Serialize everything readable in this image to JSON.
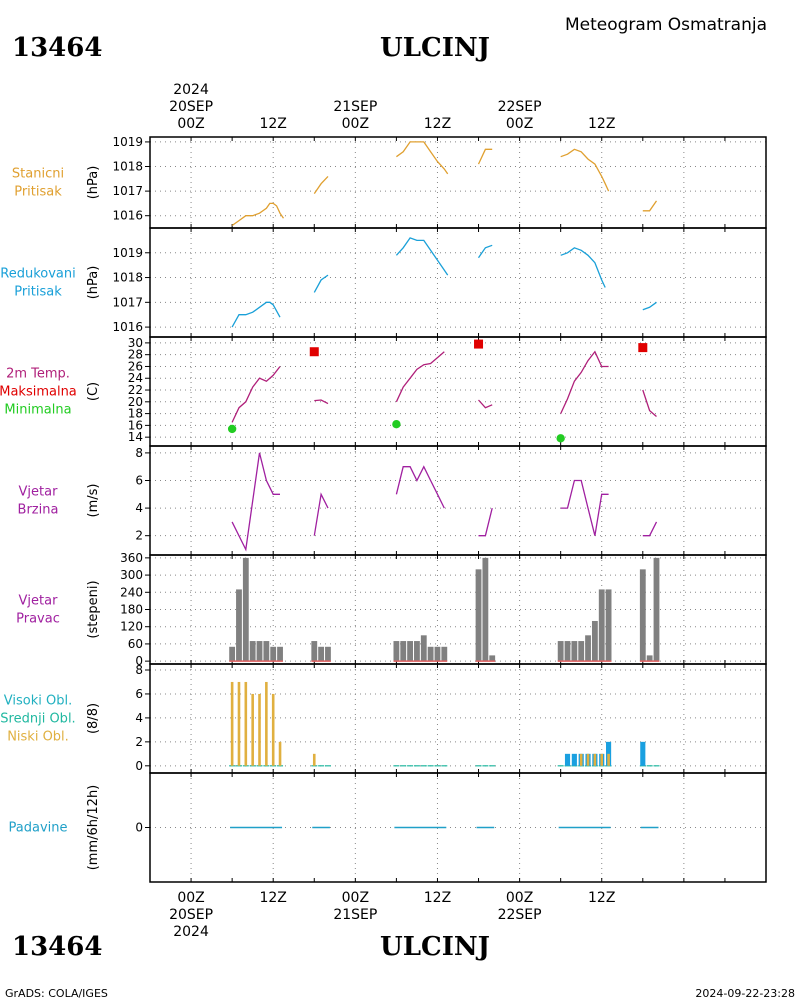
{
  "header": {
    "station_id": "13464",
    "station_name": "ULCINJ",
    "product": "Meteogram Osmatranja"
  },
  "footer": {
    "station_id": "13464",
    "station_name": "ULCINJ",
    "credit": "GrADS: COLA/IGES",
    "timestamp": "2024-09-22-23:28"
  },
  "time_axis": {
    "range_hours": [
      -6,
      84
    ],
    "top_year": "2024",
    "top_labels": [
      {
        "h": 0,
        "date": "20SEP",
        "hour": "00Z"
      },
      {
        "h": 12,
        "date": "",
        "hour": "12Z"
      },
      {
        "h": 24,
        "date": "21SEP",
        "hour": "00Z"
      },
      {
        "h": 36,
        "date": "",
        "hour": "12Z"
      },
      {
        "h": 48,
        "date": "22SEP",
        "hour": "00Z"
      },
      {
        "h": 60,
        "date": "",
        "hour": "12Z"
      }
    ],
    "bottom_year": "2024",
    "bottom_labels": [
      {
        "h": 0,
        "hour": "00Z",
        "date": "20SEP"
      },
      {
        "h": 12,
        "hour": "12Z",
        "date": ""
      },
      {
        "h": 24,
        "hour": "00Z",
        "date": "21SEP"
      },
      {
        "h": 36,
        "hour": "12Z",
        "date": ""
      },
      {
        "h": 48,
        "hour": "00Z",
        "date": "22SEP"
      },
      {
        "h": 60,
        "hour": "12Z",
        "date": ""
      }
    ]
  },
  "colors": {
    "station_pressure": "#e0a030",
    "reduced_pressure": "#1aa0d8",
    "temp": "#b0207a",
    "tmax": "#e00000",
    "tmin": "#22cc22",
    "wind": "#a020a0",
    "dir_bar": "#808080",
    "dir_line": "#e06060",
    "cloud_high": "#20b0c0",
    "cloud_mid": "#20b8a0",
    "cloud_low": "#e0b040",
    "cloud_high_bar": "#1aa0e0",
    "precip": "#20a0c8"
  },
  "chart_data": [
    {
      "type": "line",
      "labels": [
        "Stanicni",
        "Pritisak"
      ],
      "ylabel": "(hPa)",
      "ylim": [
        1015.5,
        1019.2
      ],
      "yticks": [
        1016,
        1017,
        1018,
        1019
      ],
      "series": [
        {
          "segments": [
            [
              [
                6,
                1015.6
              ],
              [
                7,
                1015.8
              ],
              [
                8,
                1016.0
              ],
              [
                9,
                1016.0
              ],
              [
                10,
                1016.1
              ],
              [
                11,
                1016.3
              ],
              [
                11.5,
                1016.5
              ],
              [
                12,
                1016.5
              ],
              [
                12.5,
                1016.4
              ],
              [
                13,
                1016.1
              ],
              [
                13.5,
                1015.9
              ]
            ],
            [
              [
                18,
                1016.9
              ],
              [
                19,
                1017.3
              ],
              [
                20,
                1017.6
              ]
            ],
            [
              [
                30,
                1018.4
              ],
              [
                31,
                1018.6
              ],
              [
                32,
                1019.0
              ],
              [
                33,
                1019.0
              ],
              [
                34,
                1019.0
              ],
              [
                35,
                1018.6
              ],
              [
                36,
                1018.2
              ],
              [
                37,
                1017.9
              ],
              [
                37.5,
                1017.7
              ]
            ],
            [
              [
                42,
                1018.1
              ],
              [
                43,
                1018.7
              ],
              [
                44,
                1018.7
              ]
            ],
            [
              [
                54,
                1018.4
              ],
              [
                55,
                1018.5
              ],
              [
                56,
                1018.7
              ],
              [
                57,
                1018.6
              ],
              [
                58,
                1018.3
              ],
              [
                59,
                1018.1
              ],
              [
                60,
                1017.6
              ],
              [
                60.5,
                1017.3
              ],
              [
                61,
                1017.0
              ]
            ],
            [
              [
                66,
                1016.2
              ],
              [
                67,
                1016.2
              ],
              [
                68,
                1016.6
              ]
            ]
          ]
        }
      ]
    },
    {
      "type": "line",
      "labels": [
        "Redukovani",
        "Pritisak"
      ],
      "ylabel": "(hPa)",
      "ylim": [
        1015.6,
        1020.0
      ],
      "yticks": [
        1016,
        1017,
        1018,
        1019
      ],
      "series": [
        {
          "segments": [
            [
              [
                6,
                1016.0
              ],
              [
                7,
                1016.5
              ],
              [
                8,
                1016.5
              ],
              [
                9,
                1016.6
              ],
              [
                10,
                1016.8
              ],
              [
                11,
                1017.0
              ],
              [
                11.5,
                1017.0
              ],
              [
                12,
                1016.9
              ],
              [
                13,
                1016.4
              ]
            ],
            [
              [
                18,
                1017.4
              ],
              [
                19,
                1017.9
              ],
              [
                20,
                1018.1
              ]
            ],
            [
              [
                30,
                1018.9
              ],
              [
                31,
                1019.2
              ],
              [
                32,
                1019.6
              ],
              [
                33,
                1019.5
              ],
              [
                34,
                1019.5
              ],
              [
                35,
                1019.1
              ],
              [
                36,
                1018.7
              ],
              [
                37,
                1018.3
              ],
              [
                37.5,
                1018.1
              ]
            ],
            [
              [
                42,
                1018.8
              ],
              [
                43,
                1019.2
              ],
              [
                44,
                1019.3
              ]
            ],
            [
              [
                54,
                1018.9
              ],
              [
                55,
                1019.0
              ],
              [
                56,
                1019.2
              ],
              [
                57,
                1019.1
              ],
              [
                58,
                1018.9
              ],
              [
                59,
                1018.6
              ],
              [
                60,
                1017.9
              ],
              [
                60.5,
                1017.6
              ]
            ],
            [
              [
                66,
                1016.7
              ],
              [
                67,
                1016.8
              ],
              [
                68,
                1017.0
              ]
            ]
          ]
        }
      ]
    },
    {
      "type": "line",
      "labels": [
        "2m Temp.",
        "Maksimalna",
        "Minimalna"
      ],
      "ylabel": "(C)",
      "ylim": [
        12.5,
        31
      ],
      "yticks": [
        14,
        16,
        18,
        20,
        22,
        24,
        26,
        28,
        30
      ],
      "series": [
        {
          "segments": [
            [
              [
                6,
                16.5
              ],
              [
                7,
                19.0
              ],
              [
                8,
                20.0
              ],
              [
                9,
                22.5
              ],
              [
                10,
                24.0
              ],
              [
                11,
                23.5
              ],
              [
                12,
                24.5
              ],
              [
                13,
                26.0
              ]
            ],
            [
              [
                18,
                20.2
              ],
              [
                19,
                20.3
              ],
              [
                20,
                19.7
              ]
            ],
            [
              [
                30,
                20.0
              ],
              [
                31,
                22.5
              ],
              [
                32,
                24.0
              ],
              [
                33,
                25.5
              ],
              [
                34,
                26.3
              ],
              [
                35,
                26.5
              ],
              [
                36,
                27.5
              ],
              [
                37,
                28.5
              ]
            ],
            [
              [
                42,
                20.3
              ],
              [
                43,
                19.0
              ],
              [
                44,
                19.5
              ]
            ],
            [
              [
                54,
                18.0
              ],
              [
                55,
                20.5
              ],
              [
                56,
                23.5
              ],
              [
                57,
                25.0
              ],
              [
                58,
                27.0
              ],
              [
                59,
                28.5
              ],
              [
                60,
                26.0
              ],
              [
                61,
                26.0
              ]
            ],
            [
              [
                66,
                22.0
              ],
              [
                67,
                18.5
              ],
              [
                68,
                17.5
              ]
            ]
          ]
        }
      ],
      "tmax": [
        [
          18,
          28.5
        ],
        [
          42,
          29.8
        ],
        [
          66,
          29.2
        ]
      ],
      "tmin": [
        [
          6,
          15.4
        ],
        [
          30,
          16.2
        ],
        [
          54,
          13.8
        ]
      ]
    },
    {
      "type": "line",
      "labels": [
        "Vjetar",
        "Brzina"
      ],
      "ylabel": "(m/s)",
      "ylim": [
        0.6,
        8.5
      ],
      "yticks": [
        2,
        4,
        6,
        8
      ],
      "series": [
        {
          "segments": [
            [
              [
                6,
                3
              ],
              [
                8,
                1
              ],
              [
                10,
                8
              ],
              [
                11,
                6
              ],
              [
                12,
                5
              ],
              [
                13,
                5
              ]
            ],
            [
              [
                18,
                2
              ],
              [
                19,
                5
              ],
              [
                20,
                4
              ]
            ],
            [
              [
                30,
                5
              ],
              [
                31,
                7
              ],
              [
                32,
                7
              ],
              [
                33,
                6
              ],
              [
                34,
                7
              ],
              [
                35,
                6
              ],
              [
                36,
                5
              ],
              [
                37,
                4
              ]
            ],
            [
              [
                42,
                2
              ],
              [
                43,
                2
              ],
              [
                44,
                4
              ]
            ],
            [
              [
                54,
                4
              ],
              [
                55,
                4
              ],
              [
                56,
                6
              ],
              [
                57,
                6
              ],
              [
                58,
                4
              ],
              [
                59,
                2
              ],
              [
                60,
                5
              ],
              [
                61,
                5
              ]
            ],
            [
              [
                66,
                2
              ],
              [
                67,
                2
              ],
              [
                68,
                3
              ]
            ]
          ]
        }
      ]
    },
    {
      "type": "bar",
      "labels": [
        "Vjetar",
        "Pravac"
      ],
      "ylabel": "(stepeni)",
      "ylim": [
        -10,
        370
      ],
      "yticks": [
        0,
        60,
        120,
        180,
        240,
        300,
        360
      ],
      "ytick_labels": [
        "0",
        "60",
        "120",
        "180",
        "240",
        "300",
        "360"
      ],
      "bars": [
        [
          6,
          50
        ],
        [
          7,
          250
        ],
        [
          8,
          360
        ],
        [
          9,
          70
        ],
        [
          10,
          70
        ],
        [
          11,
          70
        ],
        [
          12,
          50
        ],
        [
          13,
          50
        ],
        [
          18,
          70
        ],
        [
          19,
          50
        ],
        [
          20,
          50
        ],
        [
          30,
          70
        ],
        [
          31,
          70
        ],
        [
          32,
          70
        ],
        [
          33,
          70
        ],
        [
          34,
          90
        ],
        [
          35,
          50
        ],
        [
          36,
          50
        ],
        [
          37,
          50
        ],
        [
          42,
          320
        ],
        [
          43,
          360
        ],
        [
          44,
          20
        ],
        [
          54,
          70
        ],
        [
          55,
          70
        ],
        [
          56,
          70
        ],
        [
          57,
          70
        ],
        [
          58,
          90
        ],
        [
          59,
          140
        ],
        [
          60,
          250
        ],
        [
          61,
          250
        ],
        [
          66,
          320
        ],
        [
          67,
          20
        ],
        [
          68,
          360
        ]
      ]
    },
    {
      "type": "bar",
      "labels": [
        "Visoki Obl.",
        "Srednji Obl.",
        "Niski Obl."
      ],
      "ylabel": "(8/8)",
      "ylim": [
        -0.6,
        8.5
      ],
      "yticks": [
        0,
        2,
        4,
        6,
        8
      ],
      "low": [
        [
          6,
          7
        ],
        [
          7,
          7
        ],
        [
          8,
          7
        ],
        [
          9,
          6
        ],
        [
          10,
          6
        ],
        [
          11,
          7
        ],
        [
          12,
          6
        ],
        [
          13,
          2
        ],
        [
          18,
          1
        ],
        [
          57,
          1
        ],
        [
          58,
          1
        ],
        [
          59,
          1
        ],
        [
          60,
          1
        ],
        [
          61,
          1
        ]
      ],
      "high": [
        [
          55,
          1
        ],
        [
          56,
          1
        ],
        [
          57,
          1
        ],
        [
          58,
          1
        ],
        [
          59,
          1
        ],
        [
          60,
          1
        ],
        [
          61,
          2
        ],
        [
          66,
          2
        ]
      ],
      "clear_hours": [
        6,
        7,
        8,
        9,
        10,
        11,
        12,
        13,
        18,
        19,
        20,
        30,
        31,
        32,
        33,
        34,
        35,
        36,
        37,
        42,
        43,
        44,
        54,
        55,
        56,
        57,
        58,
        59,
        60,
        61,
        66,
        67,
        68
      ]
    },
    {
      "type": "bar",
      "labels": [
        "Padavine"
      ],
      "ylabel": "(mm/6h/12h)",
      "ylim": [
        -4,
        4
      ],
      "yticks": [
        0
      ],
      "zero_segments": [
        [
          6,
          13
        ],
        [
          18,
          20
        ],
        [
          30,
          37
        ],
        [
          42,
          44
        ],
        [
          54,
          61
        ],
        [
          66,
          68
        ]
      ]
    }
  ]
}
